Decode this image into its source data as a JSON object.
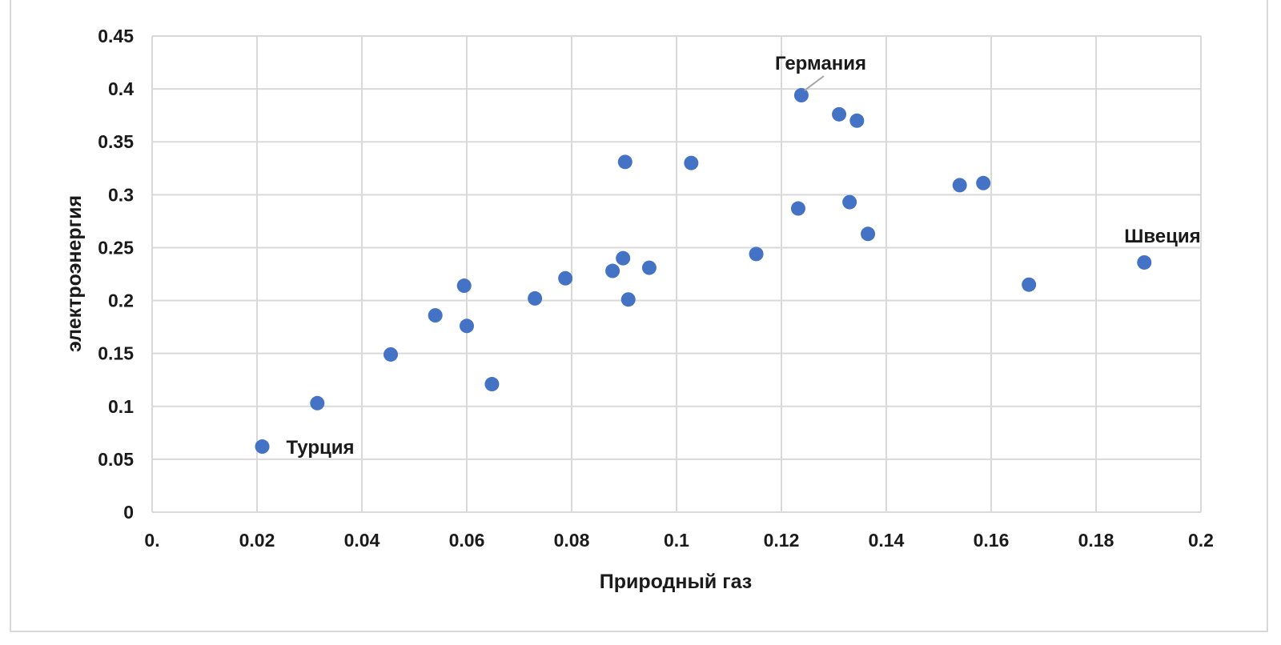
{
  "chart_data": {
    "type": "scatter",
    "title": "",
    "xlabel": "Природный газ",
    "ylabel": "электроэнергия",
    "xlim": [
      0,
      0.2
    ],
    "ylim": [
      0,
      0.45
    ],
    "x_ticks": [
      "0.",
      "0.02",
      "0.04",
      "0.06",
      "0.08",
      "0.1",
      "0.12",
      "0.14",
      "0.16",
      "0.18",
      "0.2"
    ],
    "y_ticks": [
      "0",
      "0.05",
      "0.1",
      "0.15",
      "0.2",
      "0.25",
      "0.3",
      "0.35",
      "0.4",
      "0.45"
    ],
    "grid": true,
    "legend": "none",
    "marker_color": "#4472c4",
    "points": [
      {
        "x": 0.021,
        "y": 0.062
      },
      {
        "x": 0.0315,
        "y": 0.103
      },
      {
        "x": 0.0455,
        "y": 0.149
      },
      {
        "x": 0.054,
        "y": 0.186
      },
      {
        "x": 0.0595,
        "y": 0.214
      },
      {
        "x": 0.06,
        "y": 0.176
      },
      {
        "x": 0.0648,
        "y": 0.121
      },
      {
        "x": 0.073,
        "y": 0.202
      },
      {
        "x": 0.0788,
        "y": 0.221
      },
      {
        "x": 0.0878,
        "y": 0.228
      },
      {
        "x": 0.0898,
        "y": 0.24
      },
      {
        "x": 0.0902,
        "y": 0.331
      },
      {
        "x": 0.0908,
        "y": 0.201
      },
      {
        "x": 0.0948,
        "y": 0.231
      },
      {
        "x": 0.1028,
        "y": 0.33
      },
      {
        "x": 0.1152,
        "y": 0.244
      },
      {
        "x": 0.1232,
        "y": 0.287
      },
      {
        "x": 0.1238,
        "y": 0.394
      },
      {
        "x": 0.131,
        "y": 0.376
      },
      {
        "x": 0.133,
        "y": 0.293
      },
      {
        "x": 0.1344,
        "y": 0.37
      },
      {
        "x": 0.1365,
        "y": 0.263
      },
      {
        "x": 0.154,
        "y": 0.309
      },
      {
        "x": 0.1585,
        "y": 0.311
      },
      {
        "x": 0.1672,
        "y": 0.215
      },
      {
        "x": 0.1892,
        "y": 0.236
      }
    ],
    "annotations": [
      {
        "text": "Германия",
        "x": 0.1238,
        "y": 0.394
      },
      {
        "text": "Швеция",
        "x": 0.1892,
        "y": 0.236
      },
      {
        "text": "Турция",
        "x": 0.021,
        "y": 0.062
      }
    ]
  }
}
